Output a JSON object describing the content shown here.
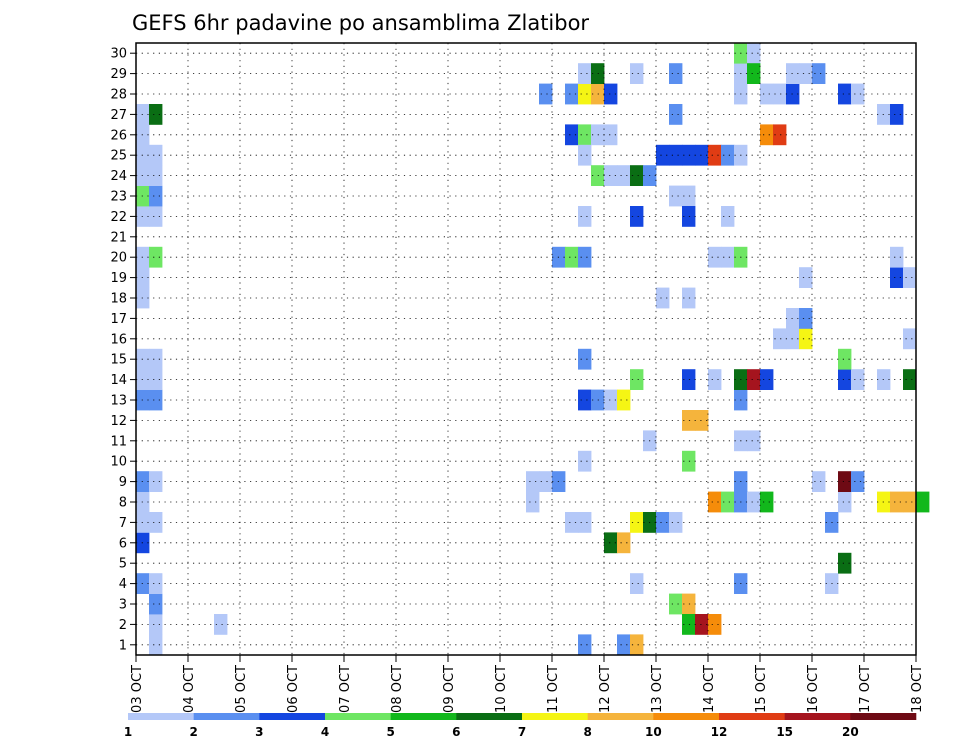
{
  "chart_data": {
    "type": "heatmap",
    "title": "GEFS 6hr padavine po ansamblima Zlatibor",
    "xlabel": "",
    "ylabel": "",
    "x_ticks": [
      "03 OCT",
      "04 OCT",
      "05 OCT",
      "06 OCT",
      "07 OCT",
      "08 OCT",
      "09 OCT",
      "10 OCT",
      "11 OCT",
      "12 OCT",
      "13 OCT",
      "14 OCT",
      "15 OCT",
      "16 OCT",
      "17 OCT",
      "18 OCT"
    ],
    "y_ticks": [
      "1",
      "2",
      "3",
      "4",
      "5",
      "6",
      "7",
      "8",
      "9",
      "10",
      "11",
      "12",
      "13",
      "14",
      "15",
      "16",
      "17",
      "18",
      "19",
      "20",
      "21",
      "22",
      "23",
      "24",
      "25",
      "26",
      "27",
      "28",
      "29",
      "30"
    ],
    "x_range": [
      0,
      15
    ],
    "y_range": [
      0.5,
      30.5
    ],
    "grid": true,
    "legend": {
      "placement": "bottom",
      "labels": [
        "1",
        "2",
        "3",
        "4",
        "5",
        "6",
        "7",
        "8",
        "10",
        "12",
        "15",
        "20"
      ],
      "colors": [
        "#b4c8f8",
        "#5a8ff0",
        "#1446e0",
        "#6ee663",
        "#12b81c",
        "#0a6e14",
        "#f5f514",
        "#f5b43c",
        "#f58c0a",
        "#e03c14",
        "#a5141e",
        "#6e0a14"
      ]
    },
    "cells": [
      [
        0.25,
        1,
        0
      ],
      [
        0.25,
        2,
        0
      ],
      [
        0.25,
        3,
        1
      ],
      [
        0.0,
        4,
        1
      ],
      [
        0.25,
        4,
        0
      ],
      [
        0.0,
        6,
        2
      ],
      [
        0.0,
        7,
        0
      ],
      [
        0.25,
        7,
        0
      ],
      [
        0.0,
        8,
        0
      ],
      [
        0.0,
        9,
        1
      ],
      [
        0.25,
        9,
        0
      ],
      [
        0.0,
        13,
        1
      ],
      [
        0.25,
        13,
        1
      ],
      [
        0.0,
        14,
        0
      ],
      [
        0.25,
        14,
        0
      ],
      [
        0.0,
        15,
        0
      ],
      [
        0.25,
        15,
        0
      ],
      [
        0.0,
        18,
        0
      ],
      [
        0.0,
        19,
        0
      ],
      [
        0.0,
        20,
        0
      ],
      [
        0.25,
        20,
        3
      ],
      [
        0.0,
        22,
        0
      ],
      [
        0.25,
        22,
        0
      ],
      [
        0.0,
        23,
        3
      ],
      [
        0.25,
        23,
        1
      ],
      [
        0.0,
        24,
        0
      ],
      [
        0.25,
        24,
        0
      ],
      [
        0.0,
        25,
        0
      ],
      [
        0.25,
        25,
        0
      ],
      [
        0.0,
        26,
        0
      ],
      [
        0.0,
        27,
        0
      ],
      [
        0.25,
        27,
        5
      ],
      [
        1.5,
        2,
        0
      ],
      [
        7.5,
        8,
        0
      ],
      [
        7.5,
        9,
        0
      ],
      [
        7.75,
        9,
        0
      ],
      [
        8.0,
        9,
        1
      ],
      [
        8.0,
        20,
        1
      ],
      [
        8.25,
        20,
        3
      ],
      [
        8.5,
        20,
        1
      ],
      [
        7.75,
        28,
        1
      ],
      [
        8.25,
        28,
        1
      ],
      [
        8.5,
        28,
        6
      ],
      [
        8.75,
        28,
        7
      ],
      [
        9.0,
        28,
        2
      ],
      [
        8.5,
        29,
        0
      ],
      [
        8.75,
        29,
        5
      ],
      [
        8.25,
        26,
        2
      ],
      [
        8.5,
        26,
        3
      ],
      [
        8.75,
        26,
        0
      ],
      [
        9.0,
        26,
        0
      ],
      [
        8.5,
        25,
        0
      ],
      [
        8.25,
        7,
        0
      ],
      [
        8.5,
        7,
        0
      ],
      [
        8.5,
        10,
        0
      ],
      [
        8.5,
        13,
        2
      ],
      [
        8.75,
        13,
        1
      ],
      [
        9.0,
        13,
        0
      ],
      [
        9.25,
        13,
        6
      ],
      [
        8.5,
        15,
        1
      ],
      [
        8.5,
        22,
        0
      ],
      [
        8.5,
        1,
        1
      ],
      [
        9.0,
        6,
        5
      ],
      [
        9.25,
        6,
        7
      ],
      [
        9.25,
        1,
        1
      ],
      [
        9.5,
        1,
        7
      ],
      [
        8.75,
        24,
        3
      ],
      [
        9.0,
        24,
        0
      ],
      [
        9.25,
        24,
        0
      ],
      [
        9.5,
        24,
        5
      ],
      [
        9.75,
        24,
        1
      ],
      [
        9.5,
        22,
        2
      ],
      [
        9.5,
        4,
        0
      ],
      [
        9.5,
        14,
        3
      ],
      [
        9.5,
        7,
        6
      ],
      [
        9.75,
        7,
        5
      ],
      [
        10.0,
        7,
        1
      ],
      [
        10.25,
        7,
        0
      ],
      [
        9.75,
        11,
        0
      ],
      [
        9.5,
        29,
        0
      ],
      [
        10.0,
        18,
        0
      ],
      [
        10.5,
        18,
        0
      ],
      [
        10.0,
        25,
        2
      ],
      [
        10.25,
        25,
        2
      ],
      [
        10.5,
        25,
        2
      ],
      [
        10.75,
        25,
        2
      ],
      [
        11.0,
        25,
        9
      ],
      [
        11.25,
        25,
        1
      ],
      [
        11.5,
        25,
        0
      ],
      [
        10.25,
        23,
        0
      ],
      [
        10.5,
        23,
        0
      ],
      [
        10.25,
        27,
        1
      ],
      [
        10.25,
        29,
        1
      ],
      [
        10.5,
        22,
        2
      ],
      [
        10.25,
        3,
        3
      ],
      [
        10.5,
        3,
        7
      ],
      [
        10.5,
        2,
        4
      ],
      [
        10.75,
        2,
        10
      ],
      [
        11.0,
        2,
        8
      ],
      [
        10.5,
        10,
        3
      ],
      [
        10.5,
        14,
        2
      ],
      [
        10.5,
        12,
        7
      ],
      [
        10.75,
        12,
        7
      ],
      [
        11.0,
        14,
        0
      ],
      [
        11.0,
        8,
        8
      ],
      [
        11.25,
        8,
        3
      ],
      [
        11.5,
        8,
        1
      ],
      [
        11.75,
        8,
        0
      ],
      [
        12.0,
        8,
        4
      ],
      [
        11.0,
        20,
        0
      ],
      [
        11.25,
        20,
        0
      ],
      [
        11.5,
        20,
        3
      ],
      [
        11.25,
        22,
        0
      ],
      [
        11.5,
        4,
        1
      ],
      [
        11.5,
        9,
        1
      ],
      [
        11.5,
        11,
        0
      ],
      [
        11.75,
        11,
        0
      ],
      [
        11.5,
        13,
        1
      ],
      [
        11.5,
        14,
        5
      ],
      [
        11.75,
        14,
        10
      ],
      [
        12.0,
        14,
        2
      ],
      [
        11.5,
        28,
        0
      ],
      [
        11.5,
        29,
        0
      ],
      [
        11.5,
        30,
        3
      ],
      [
        11.75,
        30,
        0
      ],
      [
        11.75,
        29,
        4
      ],
      [
        12.0,
        26,
        8
      ],
      [
        12.25,
        26,
        9
      ],
      [
        12.0,
        28,
        0
      ],
      [
        12.25,
        28,
        0
      ],
      [
        12.5,
        28,
        2
      ],
      [
        12.5,
        29,
        0
      ],
      [
        12.25,
        16,
        0
      ],
      [
        12.5,
        16,
        0
      ],
      [
        12.75,
        16,
        6
      ],
      [
        12.5,
        17,
        0
      ],
      [
        12.75,
        17,
        1
      ],
      [
        12.75,
        19,
        0
      ],
      [
        12.75,
        29,
        0
      ],
      [
        13.0,
        29,
        1
      ],
      [
        13.0,
        9,
        0
      ],
      [
        13.25,
        4,
        0
      ],
      [
        13.25,
        7,
        1
      ],
      [
        13.5,
        5,
        5
      ],
      [
        13.5,
        8,
        0
      ],
      [
        13.5,
        9,
        11
      ],
      [
        13.75,
        9,
        1
      ],
      [
        13.5,
        14,
        2
      ],
      [
        13.75,
        14,
        0
      ],
      [
        13.5,
        15,
        3
      ],
      [
        13.5,
        28,
        2
      ],
      [
        13.75,
        28,
        0
      ],
      [
        14.25,
        27,
        0
      ],
      [
        14.5,
        27,
        2
      ],
      [
        14.25,
        14,
        0
      ],
      [
        14.75,
        14,
        5
      ],
      [
        14.5,
        19,
        2
      ],
      [
        14.75,
        19,
        0
      ],
      [
        14.5,
        20,
        0
      ],
      [
        14.75,
        16,
        0
      ],
      [
        14.25,
        8,
        6
      ],
      [
        14.5,
        8,
        7
      ],
      [
        14.75,
        8,
        7
      ],
      [
        15.0,
        8,
        4
      ]
    ]
  }
}
